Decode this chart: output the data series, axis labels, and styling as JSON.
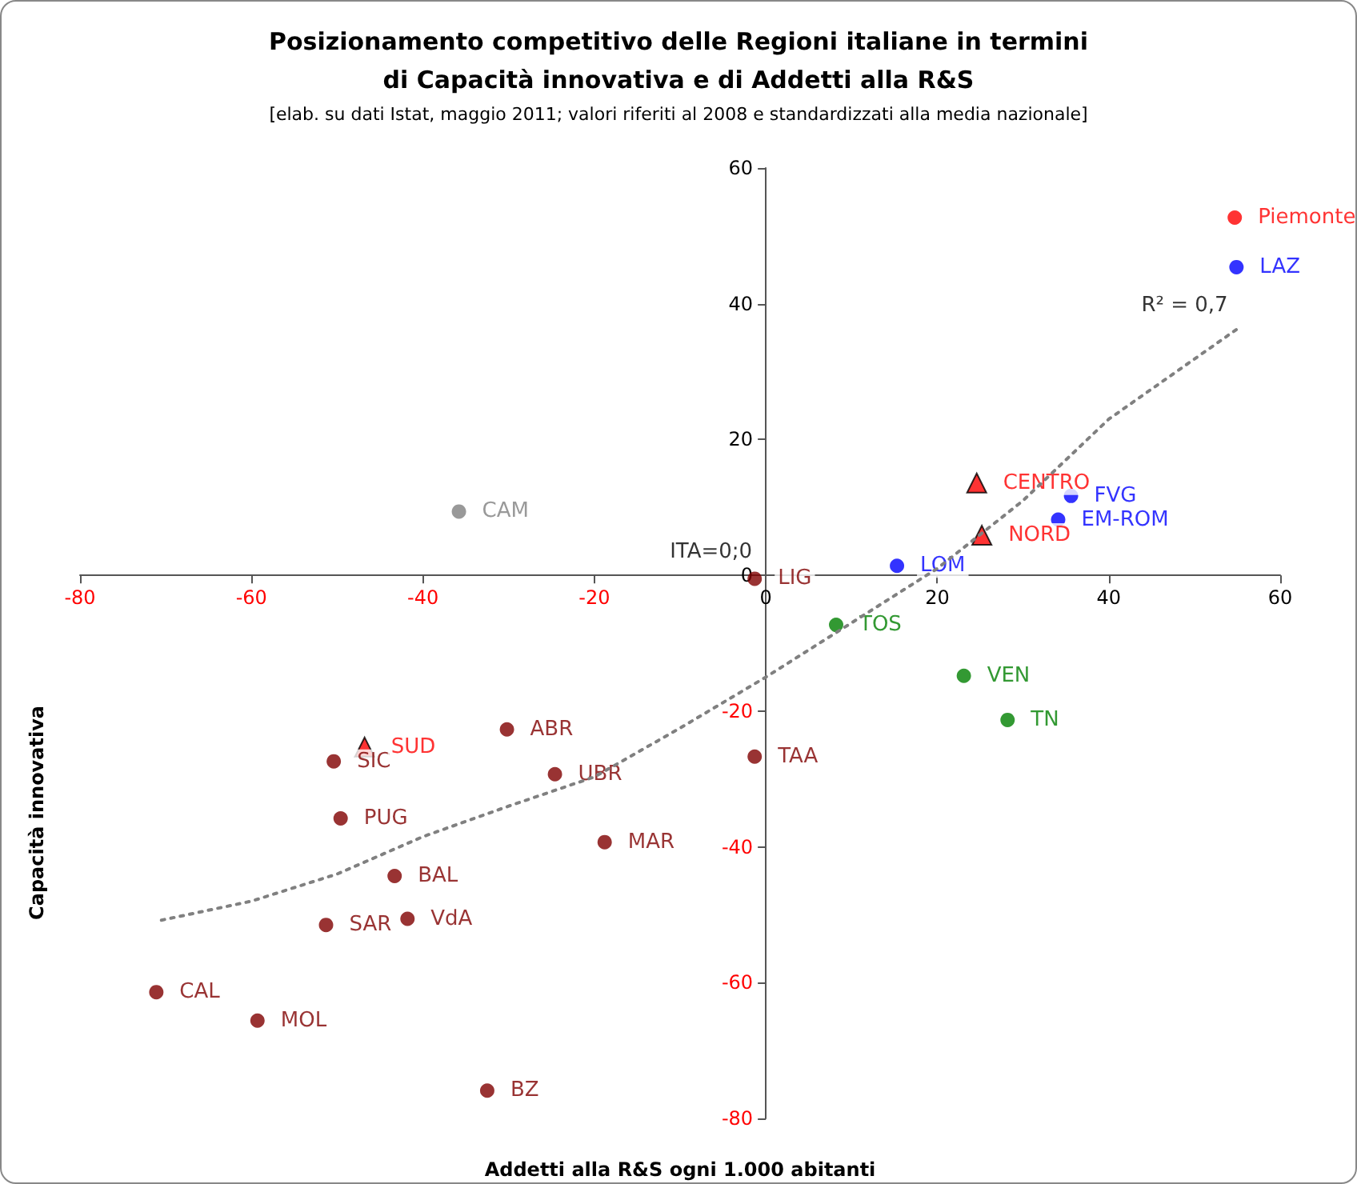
{
  "chart_data": {
    "type": "scatter",
    "title": "Posizionamento competitivo delle Regioni italiane in termini\ndi Capacità innovativa e di Addetti alla R&S",
    "subtitle": "[elab. su dati Istat, maggio 2011; valori riferiti al 2008 e standardizzati alla media nazionale]",
    "xlabel": "Addetti alla R&S ogni 1.000 abitanti",
    "ylabel": "Capacità innovativa",
    "xlim": [
      -80,
      60
    ],
    "xticks": [
      -80,
      -60,
      -40,
      -20,
      0,
      20,
      40,
      60
    ],
    "ylim": [
      -80,
      60
    ],
    "yticks": [
      -80,
      -60,
      -40,
      -20,
      0,
      20,
      40,
      60
    ],
    "marker": "circle",
    "series": [
      {
        "color": "#ff0000",
        "x": [
          54.7
        ],
        "values": [
          52.7
        ],
        "value_labels": [
          "Piemonte"
        ]
      },
      {
        "color": "#0000ff",
        "x": [
          54.9,
          35.6,
          34.1,
          15.3
        ],
        "values": [
          45.4,
          11.7,
          8.2,
          1.4
        ],
        "value_labels": [
          "LAZ",
          "FVG",
          "EM-ROM",
          "LOM"
        ]
      },
      {
        "color": "#008000",
        "x": [
          8.2,
          23.1,
          28.2
        ],
        "values": [
          -7.3,
          -14.8,
          -21.3
        ],
        "value_labels": [
          "TOS",
          "VEN",
          "TN"
        ]
      },
      {
        "color": "#808080",
        "x": [
          -35.8
        ],
        "values": [
          9.4
        ],
        "value_labels": [
          "CAM"
        ]
      },
      {
        "color": "#800000",
        "x": [
          -1.3,
          -1.3,
          -50.4,
          -30.2,
          -24.6,
          -49.6,
          -18.8,
          -43.3,
          -41.8,
          -51.3,
          -71.1,
          -59.3,
          -32.5
        ],
        "values": [
          -0.5,
          -26.7,
          -27.4,
          -22.7,
          -29.3,
          -35.8,
          -39.3,
          -44.3,
          -50.6,
          -51.5,
          -61.4,
          -65.6,
          -75.9
        ],
        "value_labels": [
          "LIG",
          "TAA",
          "SIC",
          "ABR",
          "UBR",
          "PUG",
          "MAR",
          "BAL",
          "VdA",
          "SAR",
          "CAL",
          "MOL",
          "BZ"
        ]
      },
      {
        "color": "#ff0000",
        "marker": "triangle",
        "x": [
          24.6,
          25.2,
          -46.8
        ],
        "values": [
          13.6,
          5.9,
          -25.3
        ],
        "value_labels": [
          "CENTRO",
          "NORD",
          "SUD"
        ]
      },
      {
        "type": "line",
        "color": "#808080",
        "marker": "none",
        "line_style": "dotted",
        "x": [
          -70.5,
          -60,
          -50,
          -40,
          -30,
          -20,
          -10,
          0,
          10,
          20,
          30,
          40,
          55
        ],
        "values": [
          -50.8,
          -48,
          -44,
          -38.5,
          -34,
          -29.7,
          -22.5,
          -15,
          -7,
          1,
          11,
          23,
          36.3
        ]
      }
    ],
    "annotations": [
      {
        "text": "ITA=0;0",
        "x": 0,
        "y": 0
      },
      {
        "text": "R² = 0,7",
        "x": 55,
        "y": 36.3
      }
    ]
  }
}
